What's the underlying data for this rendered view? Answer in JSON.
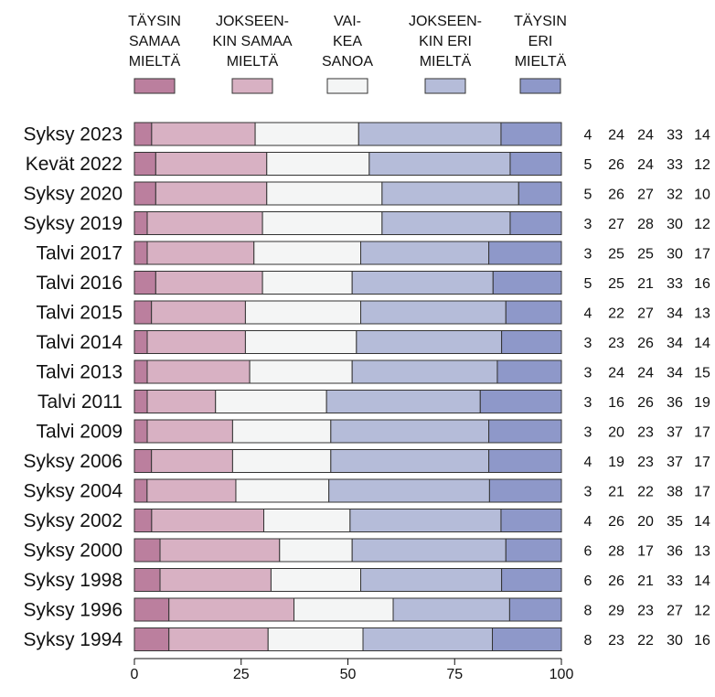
{
  "chart_data": {
    "type": "bar",
    "orientation": "horizontal",
    "stacked": true,
    "categories": [
      "Syksy 2023",
      "Kevät 2022",
      "Syksy 2020",
      "Syksy 2019",
      "Talvi 2017",
      "Talvi 2016",
      "Talvi 2015",
      "Talvi 2014",
      "Talvi 2013",
      "Talvi 2011",
      "Talvi 2009",
      "Syksy 2006",
      "Syksy 2004",
      "Syksy 2002",
      "Syksy 2000",
      "Syksy 1998",
      "Syksy 1996",
      "Syksy 1994"
    ],
    "series": [
      {
        "name": "TÄYSIN SAMAA MIELTÄ",
        "label_lines": [
          "TÄYSIN",
          "SAMAA",
          "MIELTÄ"
        ],
        "color": "#bb7f9e",
        "values": [
          4,
          5,
          5,
          3,
          3,
          5,
          4,
          3,
          3,
          3,
          3,
          4,
          3,
          4,
          6,
          6,
          8,
          8
        ]
      },
      {
        "name": "JOKSEEN-KIN SAMAA MIELTÄ",
        "label_lines": [
          "JOKSEEN-",
          "KIN SAMAA",
          "MIELTÄ"
        ],
        "color": "#d8b1c3",
        "values": [
          24,
          26,
          26,
          27,
          25,
          25,
          22,
          23,
          24,
          16,
          20,
          19,
          21,
          26,
          28,
          26,
          29,
          23
        ]
      },
      {
        "name": "VAI-KEA SANOA",
        "label_lines": [
          "VAI-",
          "KEA",
          "SANOA"
        ],
        "color": "#f4f5f5",
        "values": [
          24,
          24,
          27,
          28,
          25,
          21,
          27,
          26,
          24,
          26,
          23,
          23,
          22,
          20,
          17,
          21,
          23,
          22
        ]
      },
      {
        "name": "JOKSEEN-KIN ERI MIELTÄ",
        "label_lines": [
          "JOKSEEN-",
          "KIN ERI",
          "MIELTÄ"
        ],
        "color": "#b5bcd9",
        "values": [
          33,
          33,
          32,
          30,
          30,
          33,
          34,
          34,
          34,
          36,
          37,
          37,
          38,
          35,
          36,
          33,
          27,
          30
        ]
      },
      {
        "name": "TÄYSIN ERI MIELTÄ",
        "label_lines": [
          "TÄYSIN",
          "ERI",
          "MIELTÄ"
        ],
        "color": "#8e98c9",
        "values": [
          14,
          12,
          10,
          12,
          17,
          16,
          13,
          14,
          15,
          19,
          17,
          17,
          17,
          14,
          13,
          14,
          12,
          16
        ]
      }
    ],
    "xlim": [
      0,
      100
    ],
    "x_ticks": [
      0,
      25,
      50,
      75,
      100
    ],
    "legend": "top",
    "grid": false,
    "value_labels": "right"
  }
}
